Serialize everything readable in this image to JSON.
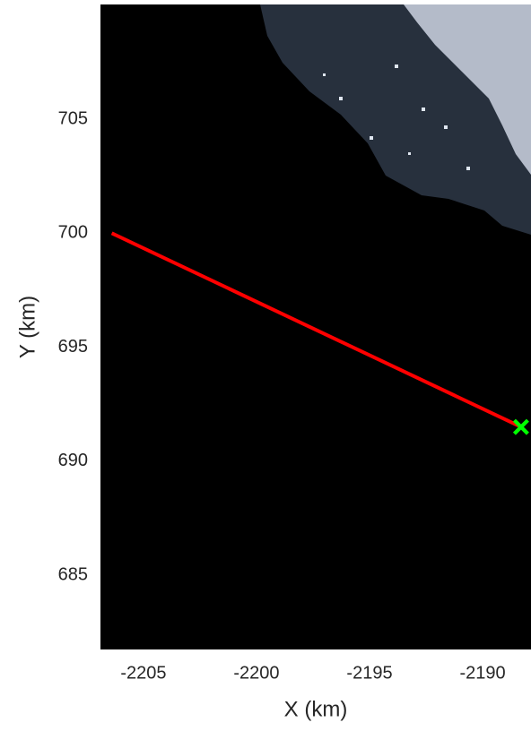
{
  "chart_data": {
    "type": "line",
    "x": [
      -2206.4,
      -2188.3
    ],
    "series": [
      {
        "color": "#ff0000",
        "values": [
          700.0,
          691.5
        ]
      }
    ],
    "points": [
      {
        "x": -2188.3,
        "y": 691.5,
        "color": "#00ff00"
      }
    ],
    "xlabel": "X (km)",
    "ylabel": "Y (km)",
    "xlim": [
      -2206.9,
      -2187.86
    ],
    "ylim": [
      681.74,
      710.03
    ],
    "xticks": [
      -2205,
      -2200,
      -2195,
      -2190
    ],
    "yticks": [
      685,
      690,
      695,
      700,
      705
    ]
  }
}
